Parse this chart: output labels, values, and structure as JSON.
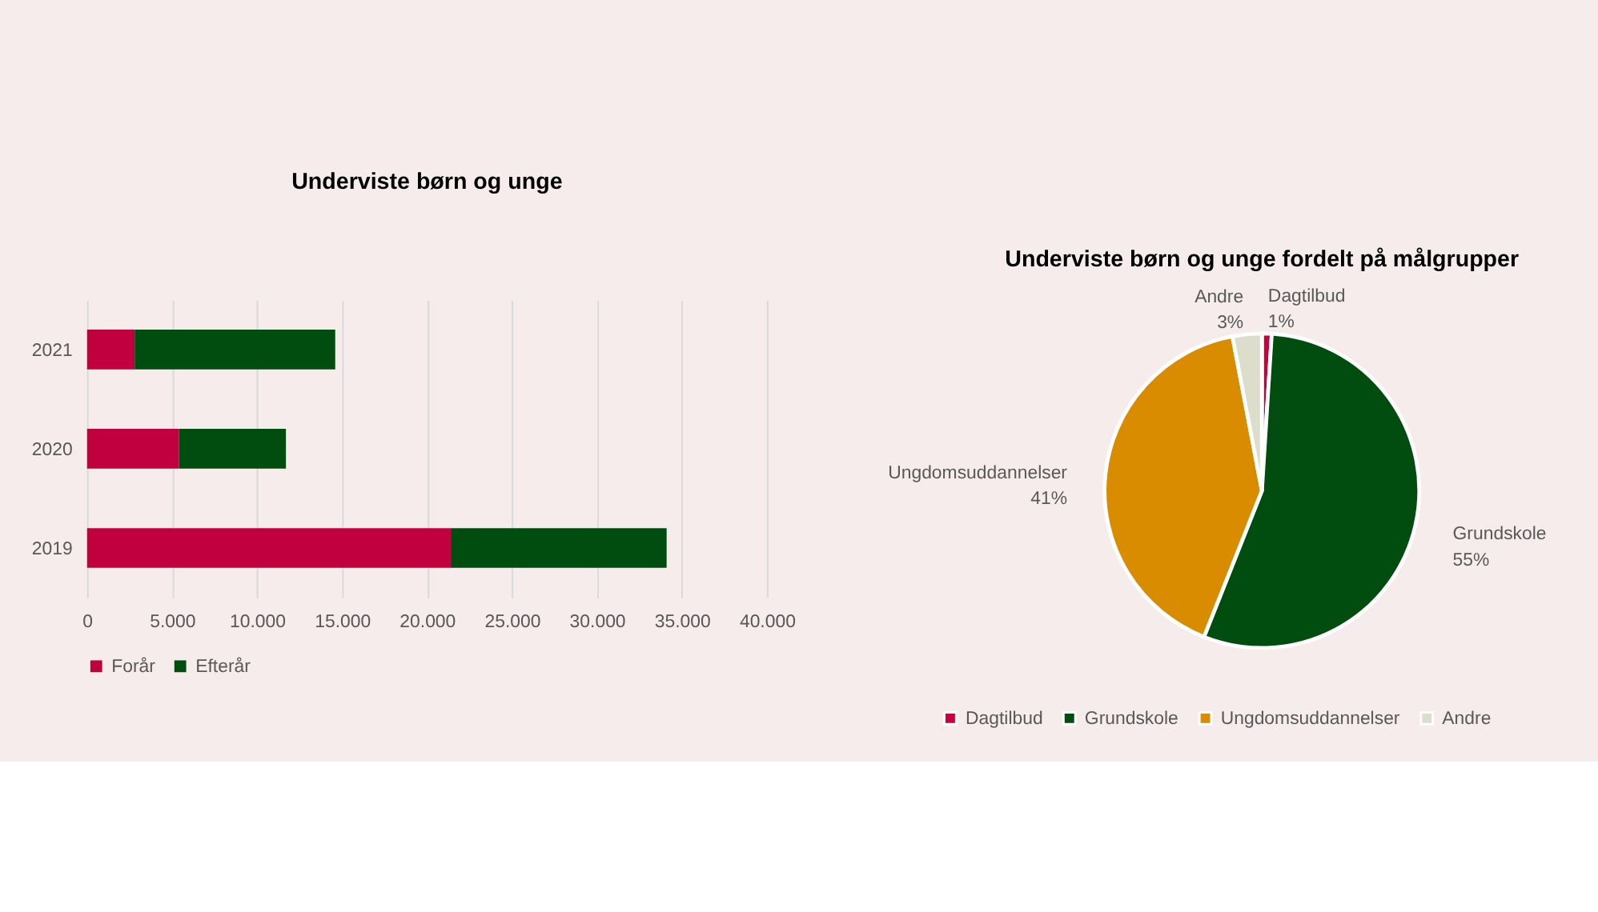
{
  "chart_data": [
    {
      "type": "bar",
      "title": "Underviste børn og unge",
      "orientation": "horizontal",
      "stacked": true,
      "categories": [
        "2021",
        "2020",
        "2019"
      ],
      "series": [
        {
          "name": "Forår",
          "color": "#c0003f",
          "values": [
            2800,
            5400,
            21400
          ]
        },
        {
          "name": "Efterår",
          "color": "#004d0f",
          "values": [
            11800,
            6300,
            12700
          ]
        }
      ],
      "xlim": [
        0,
        40000
      ],
      "xticks": [
        0,
        {
          "value": 5000,
          "label": "5.000"
        },
        {
          "value": 10000,
          "label": "10.000"
        },
        {
          "value": 15000,
          "label": "15.000"
        },
        {
          "value": 20000,
          "label": "20.000"
        },
        {
          "value": 25000,
          "label": "25.000"
        },
        {
          "value": 30000,
          "label": "30.000"
        },
        {
          "value": 35000,
          "label": "35.000"
        },
        {
          "value": 40000,
          "label": "40.000"
        }
      ],
      "grid": "x",
      "legend": "bottom"
    },
    {
      "type": "pie",
      "title": "Underviste børn og unge fordelt på målgrupper",
      "categories": [
        "Dagtilbud",
        "Grundskole",
        "Ungdomsuddannelser",
        "Andre"
      ],
      "values": [
        1,
        55,
        41,
        3
      ],
      "value_labels": [
        "1%",
        "55%",
        "41%",
        "3%"
      ],
      "colors": [
        "#c8003c",
        "#004d0f",
        "#d98c00",
        "#ddddcc"
      ],
      "legend": "bottom"
    }
  ]
}
